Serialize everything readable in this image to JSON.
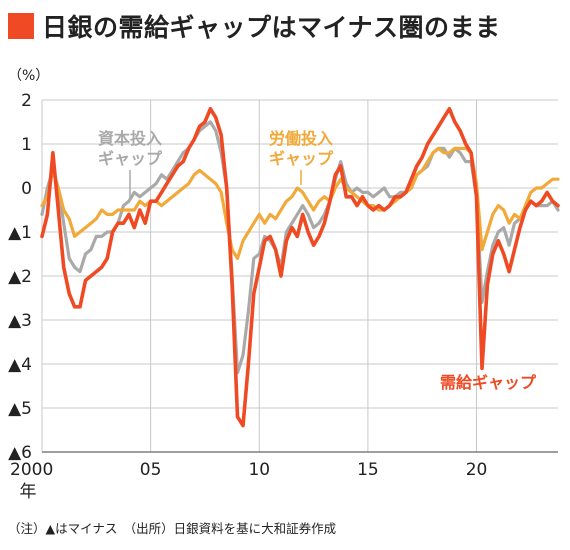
{
  "title": "日銀の需給ギャップはマイナス圏のまま",
  "note": "（注）▲はマイナス　（出所）日銀資料を基に大和証券作成",
  "colors": {
    "accent": "#ef4a23",
    "capital": "#a9a9a9",
    "labor": "#f1a93a",
    "demand": "#ef4a23"
  },
  "chart_data": {
    "type": "line",
    "ylabel": "（%）",
    "ylim": [
      -6,
      2
    ],
    "xlim": [
      2000,
      2023.75
    ],
    "y_ticks": [
      2,
      1,
      0,
      -1,
      -2,
      -3,
      -4,
      -5,
      -6
    ],
    "y_tick_labels": [
      "2",
      "1",
      "0",
      "▲1",
      "▲2",
      "▲3",
      "▲4",
      "▲5",
      "▲6"
    ],
    "x_ticks": [
      2000,
      2005,
      2010,
      2015,
      2020
    ],
    "x_tick_labels": [
      "2000",
      "05",
      "10",
      "15",
      "20"
    ],
    "x_unit_label": "年",
    "grid": true,
    "x": [
      2000,
      2000.25,
      2000.5,
      2000.75,
      2001,
      2001.25,
      2001.5,
      2001.75,
      2002,
      2002.25,
      2002.5,
      2002.75,
      2003,
      2003.25,
      2003.5,
      2003.75,
      2004,
      2004.25,
      2004.5,
      2004.75,
      2005,
      2005.25,
      2005.5,
      2005.75,
      2006,
      2006.25,
      2006.5,
      2006.75,
      2007,
      2007.25,
      2007.5,
      2007.75,
      2008,
      2008.25,
      2008.5,
      2008.75,
      2009,
      2009.25,
      2009.5,
      2009.75,
      2010,
      2010.25,
      2010.5,
      2010.75,
      2011,
      2011.25,
      2011.5,
      2011.75,
      2012,
      2012.25,
      2012.5,
      2012.75,
      2013,
      2013.25,
      2013.5,
      2013.75,
      2014,
      2014.25,
      2014.5,
      2014.75,
      2015,
      2015.25,
      2015.5,
      2015.75,
      2016,
      2016.25,
      2016.5,
      2016.75,
      2017,
      2017.25,
      2017.5,
      2017.75,
      2018,
      2018.25,
      2018.5,
      2018.75,
      2019,
      2019.25,
      2019.5,
      2019.75,
      2020,
      2020.25,
      2020.5,
      2020.75,
      2021,
      2021.25,
      2021.5,
      2021.75,
      2022,
      2022.25,
      2022.5,
      2022.75,
      2023,
      2023.25,
      2023.5,
      2023.75
    ],
    "series": [
      {
        "name": "資本投入ギャップ",
        "label_lines": [
          "資本投入",
          "ギャップ"
        ],
        "color": "#a9a9a9",
        "values": [
          -0.6,
          0.0,
          0.4,
          0.0,
          -0.8,
          -1.6,
          -1.8,
          -1.9,
          -1.5,
          -1.4,
          -1.1,
          -1.1,
          -1.0,
          -1.0,
          -0.8,
          -0.4,
          -0.3,
          -0.1,
          -0.2,
          -0.1,
          0.0,
          0.1,
          0.3,
          0.2,
          0.4,
          0.6,
          0.8,
          0.9,
          1.1,
          1.3,
          1.4,
          1.5,
          1.3,
          0.8,
          0.0,
          -2.0,
          -4.2,
          -3.8,
          -2.8,
          -1.6,
          -1.5,
          -1.1,
          -1.2,
          -1.4,
          -1.8,
          -1.0,
          -0.8,
          -0.6,
          -0.4,
          -0.6,
          -0.9,
          -0.8,
          -0.6,
          -0.3,
          0.2,
          0.6,
          0.1,
          -0.1,
          0.0,
          -0.1,
          -0.1,
          -0.2,
          -0.1,
          0.0,
          -0.2,
          -0.2,
          -0.1,
          -0.1,
          0.0,
          0.3,
          0.4,
          0.5,
          0.8,
          0.9,
          0.9,
          0.7,
          0.9,
          0.8,
          0.6,
          0.6,
          -0.2,
          -2.6,
          -1.9,
          -1.3,
          -1.0,
          -0.9,
          -1.3,
          -0.8,
          -0.7,
          -0.5,
          -0.3,
          -0.4,
          -0.4,
          -0.4,
          -0.3,
          -0.5
        ]
      },
      {
        "name": "労働投入ギャップ",
        "label_lines": [
          "労働投入",
          "ギャップ"
        ],
        "color": "#f1a93a",
        "values": [
          -0.4,
          -0.2,
          0.4,
          0.0,
          -0.5,
          -0.7,
          -1.1,
          -1.0,
          -0.9,
          -0.8,
          -0.7,
          -0.5,
          -0.6,
          -0.6,
          -0.5,
          -0.5,
          -0.5,
          -0.5,
          -0.3,
          -0.4,
          -0.3,
          -0.3,
          -0.4,
          -0.3,
          -0.2,
          -0.1,
          0.0,
          0.1,
          0.3,
          0.4,
          0.3,
          0.2,
          0.1,
          -0.1,
          -0.8,
          -1.4,
          -1.6,
          -1.2,
          -1.0,
          -0.8,
          -0.6,
          -0.8,
          -0.6,
          -0.7,
          -0.5,
          -0.3,
          -0.2,
          0.0,
          -0.1,
          -0.3,
          -0.5,
          -0.3,
          -0.2,
          -0.3,
          0.0,
          0.2,
          0.0,
          -0.1,
          -0.2,
          -0.3,
          -0.4,
          -0.4,
          -0.5,
          -0.5,
          -0.4,
          -0.3,
          -0.2,
          -0.1,
          0.0,
          0.3,
          0.4,
          0.6,
          0.8,
          0.9,
          0.8,
          0.8,
          0.9,
          0.9,
          0.9,
          0.8,
          0.1,
          -1.4,
          -1.0,
          -0.6,
          -0.4,
          -0.5,
          -0.8,
          -0.6,
          -0.7,
          -0.4,
          -0.1,
          0.0,
          0.0,
          0.1,
          0.2,
          0.2
        ]
      },
      {
        "name": "需給ギャップ",
        "label_lines": [
          "需給ギャップ"
        ],
        "color": "#ef4a23",
        "values": [
          -1.1,
          -0.6,
          0.8,
          -0.5,
          -1.8,
          -2.4,
          -2.7,
          -2.7,
          -2.1,
          -2.0,
          -1.9,
          -1.8,
          -1.6,
          -1.0,
          -0.8,
          -0.8,
          -0.6,
          -0.9,
          -0.5,
          -0.8,
          -0.3,
          -0.3,
          -0.1,
          0.1,
          0.3,
          0.5,
          0.6,
          0.9,
          1.1,
          1.4,
          1.5,
          1.8,
          1.6,
          1.2,
          0.0,
          -2.2,
          -5.2,
          -5.4,
          -4.0,
          -2.4,
          -1.8,
          -1.2,
          -1.1,
          -1.4,
          -2.0,
          -1.2,
          -0.9,
          -1.1,
          -0.6,
          -1.0,
          -1.3,
          -1.1,
          -0.8,
          -0.3,
          0.3,
          0.5,
          -0.2,
          -0.2,
          -0.4,
          -0.2,
          -0.4,
          -0.5,
          -0.4,
          -0.5,
          -0.4,
          -0.2,
          -0.2,
          -0.1,
          0.2,
          0.5,
          0.7,
          1.0,
          1.2,
          1.4,
          1.6,
          1.8,
          1.5,
          1.3,
          1.0,
          0.8,
          -0.2,
          -4.1,
          -2.2,
          -1.5,
          -1.2,
          -1.5,
          -1.9,
          -1.4,
          -0.9,
          -0.5,
          -0.3,
          -0.4,
          -0.3,
          -0.1,
          -0.3,
          -0.4
        ]
      }
    ]
  }
}
